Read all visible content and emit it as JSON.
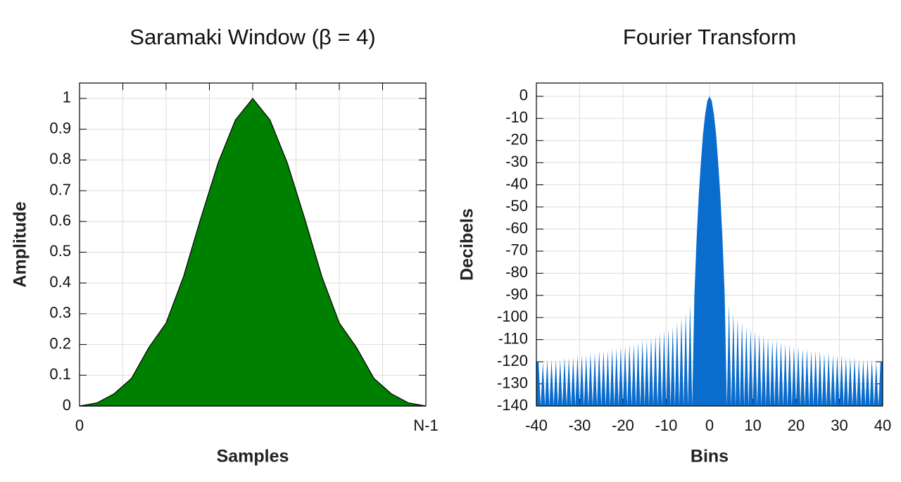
{
  "chart_data": [
    {
      "type": "area",
      "title": "Saramaki Window (β = 4)",
      "xlabel": "Samples",
      "ylabel": "Amplitude",
      "color": "#008000",
      "line_color": "#000000",
      "x": [
        0,
        1,
        2,
        3,
        4,
        5,
        6,
        7,
        8,
        9,
        10,
        11,
        12,
        13,
        14,
        15,
        16,
        17,
        18,
        19,
        20
      ],
      "values": [
        0,
        0.01,
        0.04,
        0.09,
        0.19,
        0.27,
        0.42,
        0.61,
        0.79,
        0.93,
        1,
        0.93,
        0.79,
        0.61,
        0.42,
        0.27,
        0.19,
        0.09,
        0.04,
        0.01,
        0
      ],
      "xlim": [
        0,
        20
      ],
      "xticks": [
        0,
        {
          "value": 20,
          "label": "N-1"
        }
      ],
      "ylim": [
        0,
        1.05
      ],
      "yticks": [
        0,
        0.1,
        0.2,
        0.3,
        0.4,
        0.5,
        0.6,
        0.7,
        0.8,
        0.9,
        1
      ],
      "grid": true
    },
    {
      "type": "area",
      "title": "Fourier Transform",
      "xlabel": "Bins",
      "ylabel": "Decibels",
      "color": "#0a6ccc",
      "x": [
        -40,
        -39.5,
        -39,
        -38.5,
        -38,
        -37.5,
        -37,
        -36.5,
        -36,
        -35.5,
        -35,
        -34.5,
        -34,
        -33.5,
        -33,
        -32.5,
        -32,
        -31.5,
        -31,
        -30.5,
        -30,
        -29.5,
        -29,
        -28.5,
        -28,
        -27.5,
        -27,
        -26.5,
        -26,
        -25.5,
        -25,
        -24.5,
        -24,
        -23.5,
        -23,
        -22.5,
        -22,
        -21.5,
        -21,
        -20.5,
        -20,
        -19.5,
        -19,
        -18.5,
        -18,
        -17.5,
        -17,
        -16.5,
        -16,
        -15.5,
        -15,
        -14.5,
        -14,
        -13.5,
        -13,
        -12.5,
        -12,
        -11.5,
        -11,
        -10.5,
        -10,
        -9.5,
        -9,
        -8.5,
        -8,
        -7.5,
        -7,
        -6.5,
        -6,
        -5.5,
        -5,
        -4.5,
        -4,
        -3.5,
        -3,
        -2.5,
        -2,
        -1.5,
        -1,
        -0.5,
        0,
        0.5,
        1,
        1.5,
        2,
        2.5,
        3,
        3.5,
        4,
        4.5,
        5,
        5.5,
        6,
        6.5,
        7,
        7.5,
        8,
        8.5,
        9,
        9.5,
        10,
        10.5,
        11,
        11.5,
        12,
        12.5,
        13,
        13.5,
        14,
        14.5,
        15,
        15.5,
        16,
        16.5,
        17,
        17.5,
        18,
        18.5,
        19,
        19.5,
        20,
        20.5,
        21,
        21.5,
        22,
        22.5,
        23,
        23.5,
        24,
        24.5,
        25,
        25.5,
        26,
        26.5,
        27,
        27.5,
        28,
        28.5,
        29,
        29.5,
        30,
        30.5,
        31,
        31.5,
        32,
        32.5,
        33,
        33.5,
        34,
        34.5,
        35,
        35.5,
        36,
        36.5,
        37,
        37.5,
        38,
        38.5,
        39,
        39.5,
        40
      ],
      "values": [
        -120,
        -120,
        -140,
        -120,
        -140,
        -119,
        -140,
        -119,
        -140,
        -119,
        -140,
        -119,
        -140,
        -118,
        -140,
        -118,
        -140,
        -118,
        -140,
        -117,
        -140,
        -117,
        -140,
        -117,
        -140,
        -116,
        -140,
        -116,
        -140,
        -115,
        -140,
        -115,
        -140,
        -115,
        -140,
        -114,
        -140,
        -114,
        -140,
        -113,
        -140,
        -113,
        -140,
        -112,
        -140,
        -112,
        -140,
        -111,
        -140,
        -110,
        -140,
        -110,
        -140,
        -109,
        -140,
        -108,
        -140,
        -107,
        -140,
        -106,
        -140,
        -105,
        -140,
        -104,
        -140,
        -102,
        -140,
        -100,
        -140,
        -98,
        -140,
        -94,
        -140,
        -90,
        -65,
        -45,
        -30,
        -17,
        -8,
        -2,
        0,
        -2,
        -8,
        -17,
        -30,
        -45,
        -65,
        -90,
        -140,
        -94,
        -140,
        -98,
        -140,
        -100,
        -140,
        -102,
        -140,
        -104,
        -140,
        -105,
        -140,
        -106,
        -140,
        -107,
        -140,
        -108,
        -140,
        -109,
        -140,
        -110,
        -140,
        -110,
        -140,
        -111,
        -140,
        -112,
        -140,
        -112,
        -140,
        -113,
        -140,
        -113,
        -140,
        -114,
        -140,
        -114,
        -140,
        -115,
        -140,
        -115,
        -140,
        -115,
        -140,
        -116,
        -140,
        -116,
        -140,
        -117,
        -140,
        -117,
        -140,
        -117,
        -140,
        -118,
        -140,
        -118,
        -140,
        -118,
        -140,
        -119,
        -140,
        -119,
        -140,
        -119,
        -140,
        -119,
        -140,
        -120,
        -140,
        -120,
        -120
      ],
      "xlim": [
        -40,
        40
      ],
      "xticks": [
        -40,
        -30,
        -20,
        -10,
        0,
        10,
        20,
        30,
        40
      ],
      "ylim": [
        -140,
        6
      ],
      "yticks": [
        0,
        -10,
        -20,
        -30,
        -40,
        -50,
        -60,
        -70,
        -80,
        -90,
        -100,
        -110,
        -120,
        -130,
        -140
      ],
      "grid": true
    }
  ]
}
